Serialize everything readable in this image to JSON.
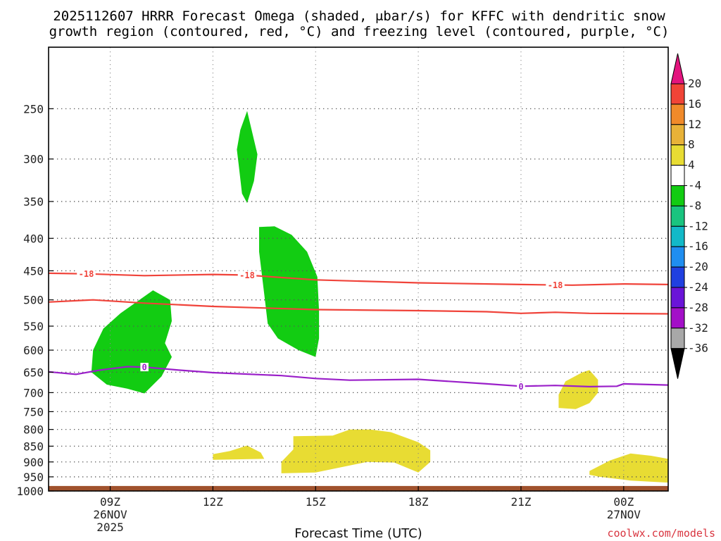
{
  "chart_data": {
    "type": "contour",
    "title_line1": "2025112607 HRRR Forecast Omega (shaded, μbar/s) for KFFC with dendritic snow",
    "title_line2": "growth region (contoured, red, °C) and freezing level (contoured, purple, °C)",
    "xlabel": "Forecast Time (UTC)",
    "credit": "coolwx.com/models",
    "x_range_hours": [
      7.2,
      25.3
    ],
    "y_axis": {
      "type": "log-pressure",
      "units": "hPa",
      "range": [
        200,
        1000
      ],
      "ticks": [
        250,
        300,
        350,
        400,
        450,
        500,
        550,
        600,
        650,
        700,
        750,
        800,
        850,
        900,
        950,
        1000
      ]
    },
    "x_ticks": [
      {
        "hour": 9,
        "label": "09Z",
        "sub1": "26NOV",
        "sub2": "2025"
      },
      {
        "hour": 12,
        "label": "12Z",
        "sub1": "",
        "sub2": ""
      },
      {
        "hour": 15,
        "label": "15Z",
        "sub1": "",
        "sub2": ""
      },
      {
        "hour": 18,
        "label": "18Z",
        "sub1": "",
        "sub2": ""
      },
      {
        "hour": 21,
        "label": "21Z",
        "sub1": "",
        "sub2": ""
      },
      {
        "hour": 24,
        "label": "00Z",
        "sub1": "27NOV",
        "sub2": ""
      }
    ],
    "colorbar": {
      "bins": [
        {
          "min": 20,
          "max": null,
          "color": "#e3147e"
        },
        {
          "min": 16,
          "max": 20,
          "color": "#f04437"
        },
        {
          "min": 12,
          "max": 16,
          "color": "#f08a2a"
        },
        {
          "min": 8,
          "max": 12,
          "color": "#e8b238"
        },
        {
          "min": 4,
          "max": 8,
          "color": "#e8dc33"
        },
        {
          "min": -4,
          "max": 4,
          "color": "#ffffff"
        },
        {
          "min": -8,
          "max": -4,
          "color": "#12cc12"
        },
        {
          "min": -12,
          "max": -8,
          "color": "#19c47f"
        },
        {
          "min": -16,
          "max": -12,
          "color": "#12b9c8"
        },
        {
          "min": -20,
          "max": -16,
          "color": "#1f8ef0"
        },
        {
          "min": -24,
          "max": -20,
          "color": "#2040e0"
        },
        {
          "min": -28,
          "max": -24,
          "color": "#6a14d8"
        },
        {
          "min": -32,
          "max": -28,
          "color": "#a30fc8"
        },
        {
          "min": -36,
          "max": -32,
          "color": "#a8a8a8"
        },
        {
          "min": null,
          "max": -36,
          "color": "#000000"
        }
      ],
      "labels": [
        "20",
        "16",
        "12",
        "8",
        "4",
        "-4",
        "-8",
        "-12",
        "-16",
        "-20",
        "-24",
        "-28",
        "-32",
        "-36"
      ]
    },
    "ground": {
      "pressure_top": 982,
      "color": "#a0522d"
    },
    "contours": [
      {
        "name": "dgz-top-minus18",
        "color": "#f0433a",
        "label": "-18",
        "points": [
          [
            7.2,
            454
          ],
          [
            8.4,
            455
          ],
          [
            10,
            458
          ],
          [
            12,
            456
          ],
          [
            13.0,
            457
          ],
          [
            15,
            465
          ],
          [
            18,
            470
          ],
          [
            21,
            473
          ],
          [
            22.5,
            474
          ],
          [
            24,
            472
          ],
          [
            25.3,
            473
          ]
        ],
        "label_hours": [
          8.3,
          13.0,
          22.0
        ]
      },
      {
        "name": "dgz-bottom-minus12",
        "color": "#f0433a",
        "label": "",
        "points": [
          [
            7.2,
            504
          ],
          [
            8.5,
            500
          ],
          [
            10,
            506
          ],
          [
            12,
            512
          ],
          [
            15,
            518
          ],
          [
            18,
            520
          ],
          [
            20,
            522
          ],
          [
            21,
            525
          ],
          [
            22,
            523
          ],
          [
            23,
            525
          ],
          [
            25.3,
            526
          ]
        ],
        "label_hours": []
      },
      {
        "name": "freezing-level-0C",
        "color": "#9a1fc9",
        "label": "0",
        "points": [
          [
            7.2,
            649
          ],
          [
            8.0,
            655
          ],
          [
            8.7,
            645
          ],
          [
            9.5,
            637
          ],
          [
            10.0,
            638
          ],
          [
            11,
            645
          ],
          [
            12,
            651
          ],
          [
            14,
            658
          ],
          [
            15.0,
            665
          ],
          [
            16.0,
            669
          ],
          [
            18.0,
            667
          ],
          [
            20.0,
            678
          ],
          [
            21.0,
            684
          ],
          [
            22.0,
            682
          ],
          [
            23.0,
            685
          ],
          [
            23.8,
            684
          ],
          [
            24.0,
            678
          ],
          [
            25.3,
            681
          ]
        ],
        "label_hours": [
          10.0,
          21.0
        ]
      }
    ],
    "shaded_areas": [
      {
        "name": "upward-motion-300hPa",
        "value_range": [
          -8,
          -4
        ],
        "color": "#12cc12",
        "points": [
          [
            13.0,
            252
          ],
          [
            13.3,
            295
          ],
          [
            13.2,
            325
          ],
          [
            13.0,
            352
          ],
          [
            12.85,
            340
          ],
          [
            12.75,
            305
          ],
          [
            12.7,
            290
          ],
          [
            12.8,
            270
          ]
        ]
      },
      {
        "name": "upward-motion-450hPa",
        "value_range": [
          -8,
          -4
        ],
        "color": "#12cc12",
        "points": [
          [
            13.35,
            384
          ],
          [
            13.8,
            383
          ],
          [
            14.3,
            395
          ],
          [
            14.75,
            420
          ],
          [
            15.05,
            460
          ],
          [
            15.1,
            520
          ],
          [
            15.1,
            575
          ],
          [
            15.0,
            615
          ],
          [
            14.5,
            600
          ],
          [
            13.9,
            575
          ],
          [
            13.6,
            545
          ],
          [
            13.5,
            490
          ],
          [
            13.35,
            420
          ]
        ]
      },
      {
        "name": "upward-motion-600hPa",
        "value_range": [
          -8,
          -4
        ],
        "color": "#12cc12",
        "points": [
          [
            10.25,
            483
          ],
          [
            10.75,
            500
          ],
          [
            10.8,
            540
          ],
          [
            10.6,
            585
          ],
          [
            10.8,
            615
          ],
          [
            10.5,
            660
          ],
          [
            10.0,
            702
          ],
          [
            9.5,
            690
          ],
          [
            8.9,
            680
          ],
          [
            8.45,
            650
          ],
          [
            8.5,
            600
          ],
          [
            8.8,
            555
          ],
          [
            9.3,
            525
          ],
          [
            9.9,
            498
          ]
        ]
      },
      {
        "name": "downward-motion-900hPa",
        "value_range": [
          4,
          8
        ],
        "color": "#e8dc33",
        "points": [
          [
            14.0,
            900
          ],
          [
            14.35,
            860
          ],
          [
            14.35,
            820
          ],
          [
            15.5,
            818
          ],
          [
            16.0,
            800
          ],
          [
            16.6,
            800
          ],
          [
            17.2,
            808
          ],
          [
            18.0,
            838
          ],
          [
            18.35,
            863
          ],
          [
            18.35,
            900
          ],
          [
            18.0,
            935
          ],
          [
            17.3,
            902
          ],
          [
            16.5,
            900
          ],
          [
            15.0,
            935
          ],
          [
            14.0,
            938
          ]
        ]
      },
      {
        "name": "downward-motion-875hPa",
        "value_range": [
          4,
          8
        ],
        "color": "#e8dc33",
        "points": [
          [
            12.0,
            875
          ],
          [
            12.5,
            865
          ],
          [
            13.0,
            848
          ],
          [
            13.4,
            870
          ],
          [
            13.5,
            890
          ],
          [
            12.0,
            893
          ]
        ]
      },
      {
        "name": "downward-motion-690hPa",
        "value_range": [
          4,
          8
        ],
        "color": "#e8dc33",
        "points": [
          [
            23.0,
            645
          ],
          [
            23.25,
            668
          ],
          [
            23.25,
            700
          ],
          [
            23.0,
            727
          ],
          [
            22.6,
            743
          ],
          [
            22.1,
            740
          ],
          [
            22.1,
            705
          ],
          [
            22.3,
            672
          ],
          [
            22.8,
            650
          ]
        ]
      },
      {
        "name": "downward-motion-940hPa",
        "value_range": [
          4,
          8
        ],
        "color": "#e8dc33",
        "points": [
          [
            23.0,
            930
          ],
          [
            23.6,
            895
          ],
          [
            24.2,
            873
          ],
          [
            24.8,
            880
          ],
          [
            25.3,
            890
          ],
          [
            25.3,
            970
          ],
          [
            24.2,
            963
          ],
          [
            23.3,
            950
          ],
          [
            23.0,
            943
          ]
        ]
      }
    ]
  }
}
